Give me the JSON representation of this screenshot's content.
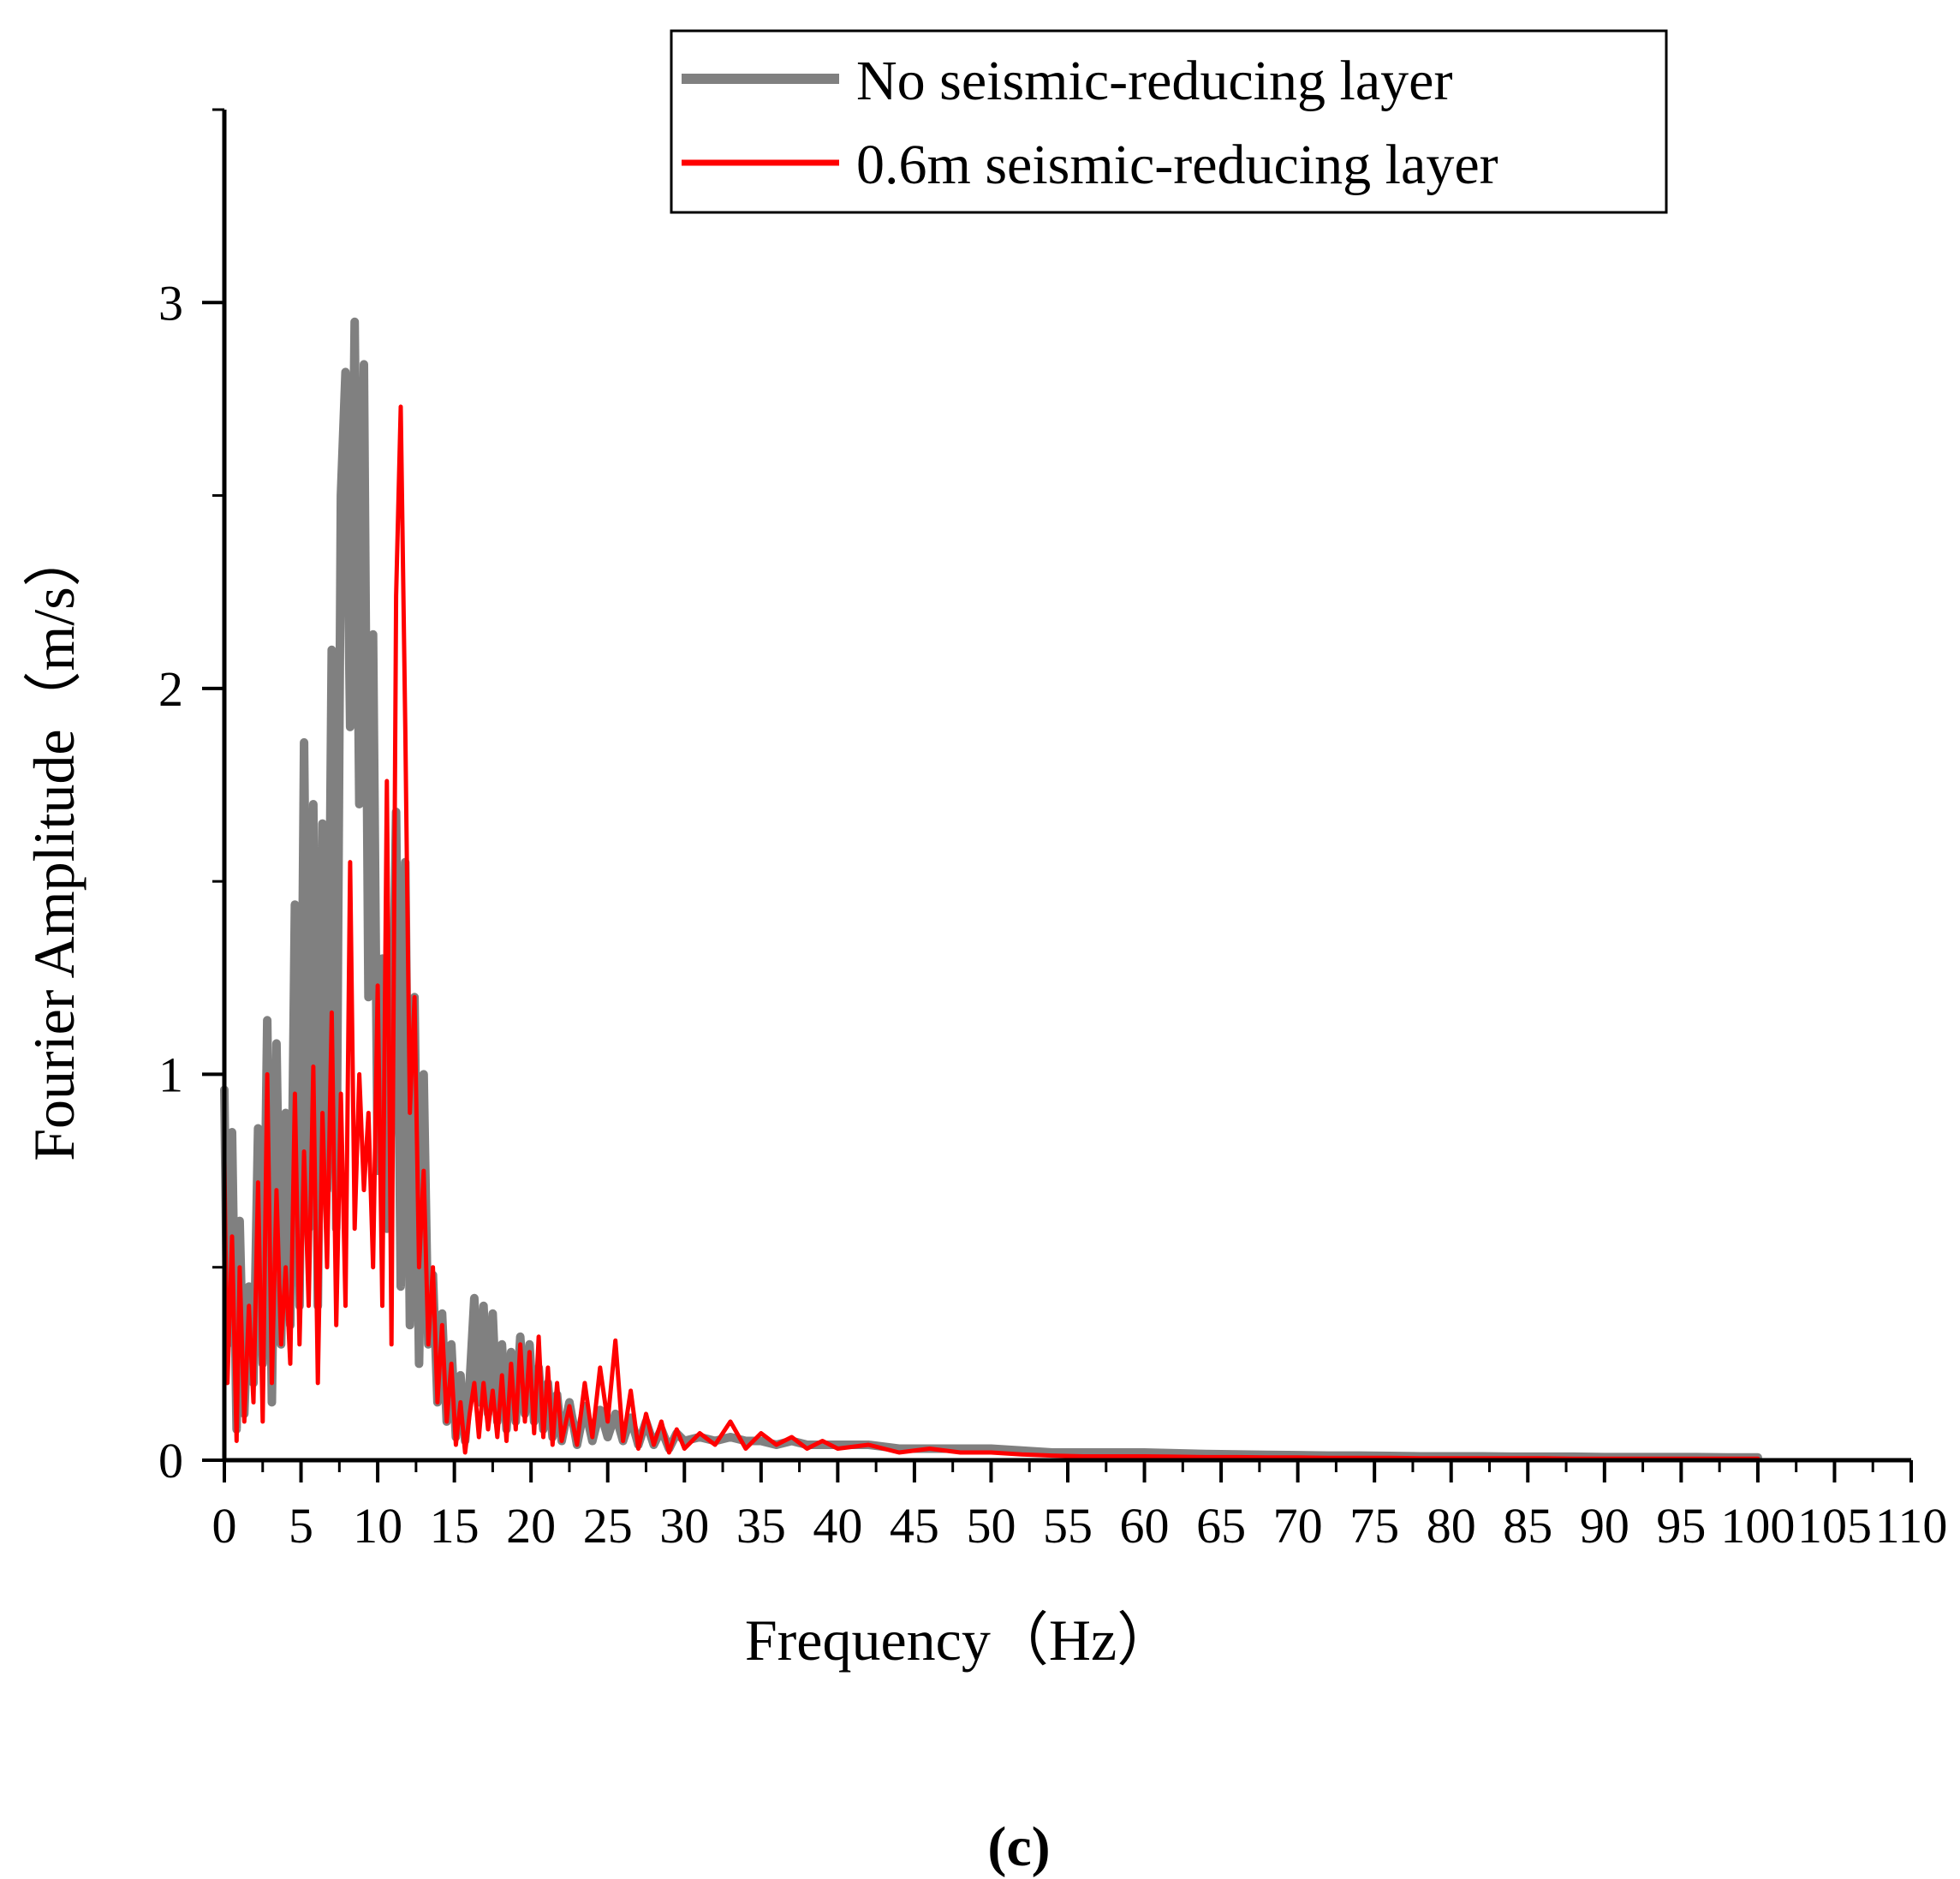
{
  "chart_data": {
    "type": "line",
    "title": "",
    "panel_label": "(c)",
    "xlabel": "Frequency（Hz）",
    "ylabel": "Fourier Amplitude（m/s）",
    "xlim": [
      0,
      110
    ],
    "ylim": [
      0,
      3.5
    ],
    "x_ticks": [
      0,
      5,
      10,
      15,
      20,
      25,
      30,
      35,
      40,
      45,
      50,
      55,
      60,
      65,
      70,
      75,
      80,
      85,
      90,
      95,
      100,
      105,
      110
    ],
    "x_tick_labels": [
      "0",
      "5",
      "10",
      "15",
      "20",
      "25",
      "30",
      "35",
      "40",
      "45",
      "50",
      "55",
      "60",
      "65",
      "70",
      "75",
      "80",
      "85",
      "90",
      "95",
      "100",
      "105",
      "110"
    ],
    "y_ticks": [
      0,
      1,
      2,
      3
    ],
    "y_tick_labels": [
      "0",
      "1",
      "2",
      "3"
    ],
    "grid": false,
    "legend_position": "top-right",
    "series": [
      {
        "name": "No seismic-reducing layer",
        "color": "#808080",
        "x": [
          0,
          0.2,
          0.5,
          0.8,
          1,
          1.3,
          1.6,
          1.9,
          2.2,
          2.5,
          2.8,
          3.1,
          3.4,
          3.7,
          4,
          4.3,
          4.6,
          4.9,
          5.2,
          5.5,
          5.8,
          6.1,
          6.4,
          6.7,
          7,
          7.3,
          7.6,
          7.9,
          8.2,
          8.5,
          8.8,
          9.1,
          9.4,
          9.7,
          10,
          10.3,
          10.6,
          10.9,
          11.2,
          11.5,
          11.8,
          12.1,
          12.4,
          12.7,
          13,
          13.3,
          13.6,
          13.9,
          14.2,
          14.5,
          14.8,
          15.1,
          15.4,
          15.7,
          16,
          16.3,
          16.6,
          16.9,
          17.2,
          17.5,
          17.8,
          18.1,
          18.4,
          18.7,
          19,
          19.3,
          19.6,
          19.9,
          20.2,
          20.5,
          20.8,
          21.1,
          21.4,
          21.7,
          22,
          22.5,
          23,
          23.5,
          24,
          24.5,
          25,
          25.5,
          26,
          26.5,
          27,
          27.5,
          28,
          28.5,
          29,
          29.5,
          30,
          31,
          32,
          33,
          34,
          35,
          36,
          37,
          38,
          39,
          40,
          42,
          44,
          46,
          48,
          50,
          52,
          54,
          56,
          58,
          60,
          62,
          64,
          66,
          68,
          70,
          72,
          74,
          76,
          78,
          80,
          82,
          84,
          86,
          88,
          90,
          92,
          94,
          96,
          98,
          100
        ],
        "values": [
          0.96,
          0.3,
          0.85,
          0.08,
          0.62,
          0.12,
          0.45,
          0.2,
          0.86,
          0.25,
          1.14,
          0.15,
          1.08,
          0.3,
          0.9,
          0.35,
          1.44,
          0.4,
          1.86,
          0.6,
          1.7,
          0.4,
          1.65,
          0.7,
          2.1,
          0.6,
          2.5,
          2.82,
          1.9,
          2.95,
          1.7,
          2.84,
          1.2,
          2.14,
          0.75,
          1.3,
          0.6,
          0.9,
          1.68,
          0.45,
          1.55,
          0.35,
          1.2,
          0.25,
          1.0,
          0.3,
          0.48,
          0.15,
          0.38,
          0.1,
          0.3,
          0.06,
          0.22,
          0.05,
          0.2,
          0.42,
          0.15,
          0.4,
          0.12,
          0.38,
          0.1,
          0.3,
          0.08,
          0.28,
          0.1,
          0.32,
          0.12,
          0.3,
          0.1,
          0.24,
          0.08,
          0.2,
          0.06,
          0.17,
          0.05,
          0.15,
          0.04,
          0.14,
          0.05,
          0.13,
          0.06,
          0.12,
          0.05,
          0.11,
          0.04,
          0.1,
          0.04,
          0.08,
          0.03,
          0.07,
          0.05,
          0.06,
          0.05,
          0.06,
          0.05,
          0.05,
          0.04,
          0.05,
          0.04,
          0.04,
          0.04,
          0.04,
          0.03,
          0.03,
          0.03,
          0.03,
          0.025,
          0.02,
          0.02,
          0.02,
          0.02,
          0.018,
          0.016,
          0.015,
          0.014,
          0.013,
          0.012,
          0.012,
          0.011,
          0.01,
          0.01,
          0.01,
          0.009,
          0.009,
          0.009,
          0.008,
          0.008,
          0.008,
          0.008,
          0.007,
          0.007
        ]
      },
      {
        "name": "0.6m seismic-reducing layer",
        "color": "#ff0000",
        "x": [
          0,
          0.2,
          0.5,
          0.8,
          1,
          1.3,
          1.6,
          1.9,
          2.2,
          2.5,
          2.8,
          3.1,
          3.4,
          3.7,
          4,
          4.3,
          4.6,
          4.9,
          5.2,
          5.5,
          5.8,
          6.1,
          6.4,
          6.7,
          7,
          7.3,
          7.6,
          7.9,
          8.2,
          8.5,
          8.8,
          9.1,
          9.4,
          9.7,
          10,
          10.3,
          10.6,
          10.9,
          11.2,
          11.5,
          11.8,
          12.1,
          12.4,
          12.7,
          13,
          13.3,
          13.6,
          13.9,
          14.2,
          14.5,
          14.8,
          15.1,
          15.4,
          15.7,
          16,
          16.3,
          16.6,
          16.9,
          17.2,
          17.5,
          17.8,
          18.1,
          18.4,
          18.7,
          19,
          19.3,
          19.6,
          19.9,
          20.2,
          20.5,
          20.8,
          21.1,
          21.4,
          21.7,
          22,
          22.5,
          23,
          23.5,
          24,
          24.5,
          25,
          25.5,
          26,
          26.5,
          27,
          27.5,
          28,
          28.5,
          29,
          29.5,
          30,
          31,
          32,
          33,
          34,
          35,
          36,
          37,
          38,
          39,
          40,
          42,
          44,
          46,
          48,
          50,
          52,
          54,
          56,
          58,
          60,
          62,
          64,
          66,
          68,
          70,
          72,
          74,
          76,
          78,
          80,
          82,
          84,
          86,
          88,
          90,
          92,
          94,
          96,
          98,
          100
        ],
        "values": [
          0.78,
          0.2,
          0.58,
          0.05,
          0.5,
          0.1,
          0.4,
          0.15,
          0.72,
          0.1,
          1.0,
          0.2,
          0.7,
          0.3,
          0.5,
          0.25,
          0.95,
          0.3,
          0.8,
          0.4,
          1.02,
          0.2,
          0.9,
          0.5,
          1.16,
          0.35,
          0.95,
          0.4,
          1.55,
          0.6,
          1.0,
          0.7,
          0.9,
          0.5,
          1.23,
          0.4,
          1.76,
          0.3,
          2.24,
          2.73,
          1.9,
          0.9,
          1.2,
          0.5,
          0.75,
          0.3,
          0.5,
          0.15,
          0.35,
          0.1,
          0.25,
          0.04,
          0.15,
          0.02,
          0.12,
          0.2,
          0.06,
          0.2,
          0.08,
          0.18,
          0.06,
          0.22,
          0.05,
          0.25,
          0.08,
          0.3,
          0.1,
          0.28,
          0.07,
          0.32,
          0.06,
          0.24,
          0.04,
          0.2,
          0.05,
          0.14,
          0.04,
          0.2,
          0.06,
          0.24,
          0.1,
          0.31,
          0.05,
          0.18,
          0.03,
          0.12,
          0.04,
          0.1,
          0.02,
          0.08,
          0.03,
          0.07,
          0.04,
          0.1,
          0.03,
          0.07,
          0.04,
          0.06,
          0.03,
          0.05,
          0.03,
          0.04,
          0.02,
          0.03,
          0.02,
          0.02,
          0.015,
          0.012,
          0.01,
          0.01,
          0.01,
          0.009,
          0.008,
          0.008,
          0.007,
          0.007,
          0.006,
          0.006,
          0.006,
          0.005,
          0.005,
          0.005,
          0.005,
          0.005,
          0.004,
          0.004,
          0.004,
          0.004,
          0.004,
          0.004,
          0.004
        ]
      }
    ]
  }
}
